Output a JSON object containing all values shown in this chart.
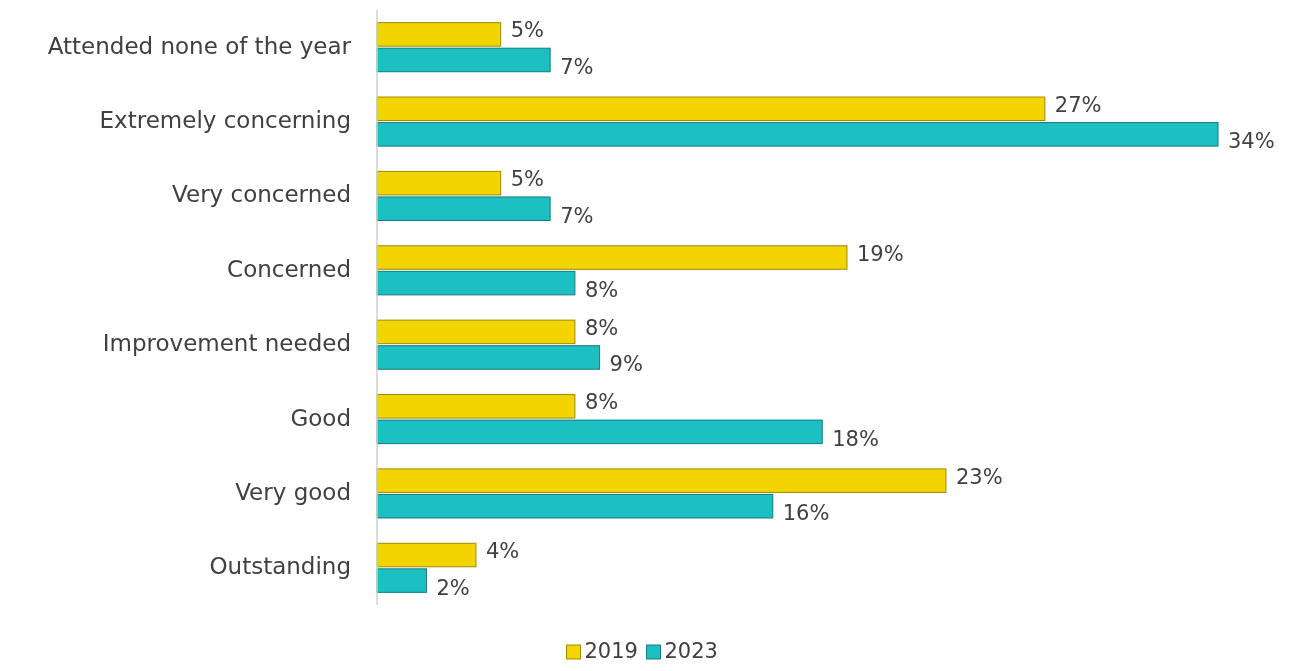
{
  "chart_data": {
    "type": "bar",
    "orientation": "horizontal",
    "categories": [
      "Attended none of the year",
      "Extremely concerning",
      "Very concerned",
      "Concerned",
      "Improvement needed",
      "Good",
      "Very good",
      "Outstanding"
    ],
    "series": [
      {
        "name": "2019",
        "color": "#f2d400",
        "values": [
          5,
          27,
          5,
          19,
          8,
          8,
          23,
          4
        ],
        "value_labels": [
          "5%",
          "27%",
          "5%",
          "19%",
          "8%",
          "8%",
          "23%",
          "4%"
        ]
      },
      {
        "name": "2023",
        "color": "#1cbfc2",
        "values": [
          7,
          34,
          7,
          8,
          9,
          18,
          16,
          2
        ],
        "value_labels": [
          "7%",
          "34%",
          "7%",
          "8%",
          "9%",
          "18%",
          "16%",
          "2%"
        ]
      }
    ],
    "legend": "bottom",
    "grid": false
  }
}
